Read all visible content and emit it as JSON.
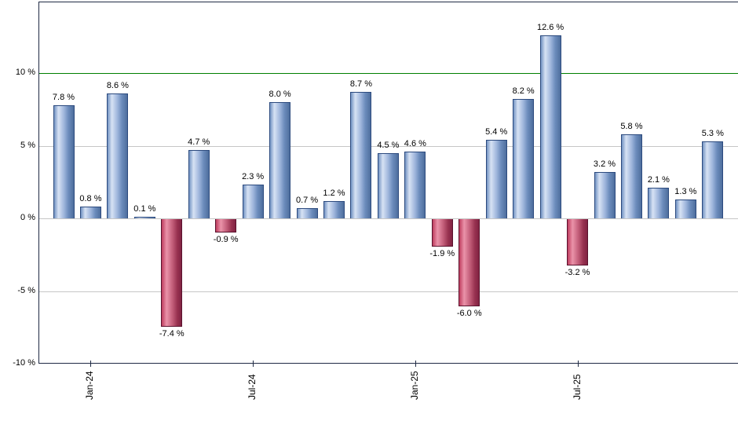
{
  "chart_data": {
    "type": "bar",
    "title": "",
    "description": "Monthly percent-return bar chart; blue bars positive months, red bars negative months",
    "values": [
      7.8,
      0.8,
      8.6,
      0.1,
      -7.4,
      4.7,
      -0.9,
      2.3,
      8.0,
      0.7,
      1.2,
      8.7,
      4.5,
      4.6,
      -1.9,
      -6.0,
      5.4,
      8.2,
      12.6,
      -3.2,
      3.2,
      5.8,
      2.1,
      1.3,
      5.3
    ],
    "bar_labels": [
      "7.8 %",
      "0.8 %",
      "8.6 %",
      "0.1 %",
      "-7.4 %",
      "4.7 %",
      "-0.9 %",
      "2.3 %",
      "8.0 %",
      "0.7 %",
      "1.2 %",
      "8.7 %",
      "4.5 %",
      "4.6 %",
      "-1.9 %",
      "-6.0 %",
      "5.4 %",
      "8.2 %",
      "12.6 %",
      "-3.2 %",
      "3.2 %",
      "5.8 %",
      "2.1 %",
      "1.3 %",
      "5.3 %"
    ],
    "x_ticks": [
      {
        "label": "Jan-24",
        "bar_index": 1
      },
      {
        "label": "Jul-24",
        "bar_index": 7
      },
      {
        "label": "Jan-25",
        "bar_index": 13
      },
      {
        "label": "Jul-25",
        "bar_index": 19
      }
    ],
    "y_ticks": [
      {
        "label": "10 %",
        "value": 10
      },
      {
        "label": "5 %",
        "value": 5
      },
      {
        "label": "0 %",
        "value": 0
      },
      {
        "label": "-5 %",
        "value": -5
      },
      {
        "label": "-10 %",
        "value": -10
      }
    ],
    "ylim": [
      -10,
      14.9
    ],
    "grid": "horizontal-light-gray",
    "legend": "none",
    "reference_line": {
      "value": 10,
      "color": "#008000"
    },
    "colors": {
      "positive_gradient": [
        "#7293c3",
        "#d7e2f4",
        "#9fb6dc",
        "#6d8dbd",
        "#4e6e9d"
      ],
      "positive_border": "#2c4a7e",
      "negative_gradient": [
        "#be3c5e",
        "#ea93a9",
        "#c25d79",
        "#97314f",
        "#822343"
      ],
      "negative_border": "#5a132e",
      "gridline": "#c6c6c6",
      "axis": "#1f2a44",
      "label_text": "#000000",
      "background": "#ffffff"
    }
  }
}
